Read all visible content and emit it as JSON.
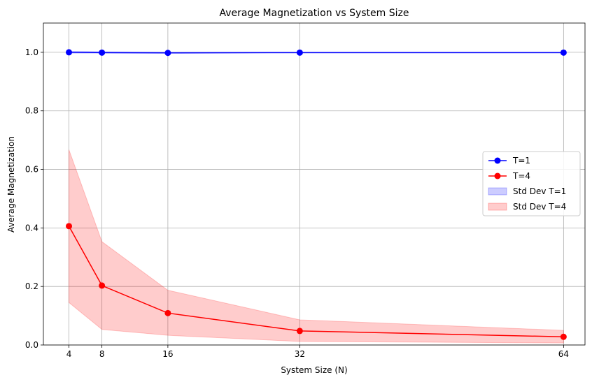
{
  "chart_data": {
    "type": "line",
    "title": "Average Magnetization vs System Size",
    "xlabel": "System Size (N)",
    "ylabel": "Average Magnetization",
    "xlim": [
      0.9,
      66.6
    ],
    "ylim": [
      0.0,
      1.1
    ],
    "xticks": [
      4,
      8,
      16,
      32,
      64
    ],
    "yticks": [
      0.0,
      0.2,
      0.4,
      0.6,
      0.8,
      1.0
    ],
    "ytick_labels": [
      "0.0",
      "0.2",
      "0.4",
      "0.6",
      "0.8",
      "1.0"
    ],
    "grid": true,
    "legend_position": "center-right",
    "x": [
      4,
      8,
      16,
      32,
      64
    ],
    "series": [
      {
        "name": "T=1",
        "color": "#0000ff",
        "values": [
          1.0,
          0.999,
          0.998,
          0.999,
          0.999
        ]
      },
      {
        "name": "T=4",
        "color": "#ff0000",
        "values": [
          0.406,
          0.203,
          0.109,
          0.048,
          0.028
        ]
      }
    ],
    "bands": [
      {
        "name": "Std Dev T=1",
        "color": "#0000ff",
        "lower": [
          0.997,
          0.997,
          0.997,
          0.998,
          0.998
        ],
        "upper": [
          1.003,
          1.002,
          1.0,
          1.0,
          1.0
        ]
      },
      {
        "name": "Std Dev T=4",
        "color": "#ff0000",
        "lower": [
          0.145,
          0.053,
          0.033,
          0.012,
          0.007
        ],
        "upper": [
          0.667,
          0.353,
          0.187,
          0.086,
          0.05
        ]
      }
    ]
  }
}
